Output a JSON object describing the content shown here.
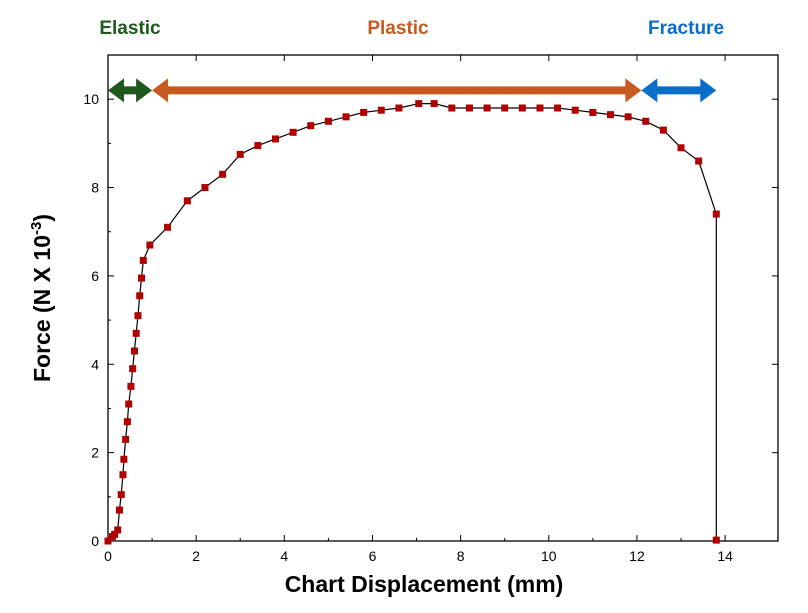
{
  "chart_data": {
    "type": "scatter",
    "xlabel": "Chart Displacement (mm)",
    "ylabel": {
      "main": "Force (N X 10",
      "sup": "-3",
      "close": ")"
    },
    "xlim": [
      0,
      15.2
    ],
    "ylim": [
      0,
      11
    ],
    "xticks": [
      0,
      2,
      4,
      6,
      8,
      10,
      12,
      14
    ],
    "yticks": [
      0,
      2,
      4,
      6,
      8,
      10
    ],
    "grid": false,
    "series": [
      {
        "color": "#b00000",
        "line_color": "#000000",
        "marker": "square",
        "points": [
          [
            0.0,
            0.0
          ],
          [
            0.1,
            0.1
          ],
          [
            0.15,
            0.15
          ],
          [
            0.22,
            0.25
          ],
          [
            0.26,
            0.7
          ],
          [
            0.3,
            1.05
          ],
          [
            0.34,
            1.5
          ],
          [
            0.36,
            1.85
          ],
          [
            0.4,
            2.3
          ],
          [
            0.44,
            2.7
          ],
          [
            0.47,
            3.1
          ],
          [
            0.52,
            3.5
          ],
          [
            0.56,
            3.9
          ],
          [
            0.6,
            4.3
          ],
          [
            0.64,
            4.7
          ],
          [
            0.68,
            5.1
          ],
          [
            0.72,
            5.55
          ],
          [
            0.76,
            5.95
          ],
          [
            0.8,
            6.35
          ],
          [
            0.95,
            6.7
          ],
          [
            1.35,
            7.1
          ],
          [
            1.8,
            7.7
          ],
          [
            2.2,
            8.0
          ],
          [
            2.6,
            8.3
          ],
          [
            3.0,
            8.75
          ],
          [
            3.4,
            8.95
          ],
          [
            3.8,
            9.1
          ],
          [
            4.2,
            9.25
          ],
          [
            4.6,
            9.4
          ],
          [
            5.0,
            9.5
          ],
          [
            5.4,
            9.6
          ],
          [
            5.8,
            9.7
          ],
          [
            6.2,
            9.75
          ],
          [
            6.6,
            9.8
          ],
          [
            7.05,
            9.9
          ],
          [
            7.4,
            9.9
          ],
          [
            7.8,
            9.8
          ],
          [
            8.2,
            9.8
          ],
          [
            8.6,
            9.8
          ],
          [
            9.0,
            9.8
          ],
          [
            9.4,
            9.8
          ],
          [
            9.8,
            9.8
          ],
          [
            10.2,
            9.8
          ],
          [
            10.6,
            9.75
          ],
          [
            11.0,
            9.7
          ],
          [
            11.4,
            9.65
          ],
          [
            11.8,
            9.6
          ],
          [
            12.2,
            9.5
          ],
          [
            12.6,
            9.3
          ],
          [
            13.0,
            8.9
          ],
          [
            13.4,
            8.6
          ],
          [
            13.8,
            7.4
          ],
          [
            13.8,
            0.02
          ]
        ]
      }
    ],
    "regions": [
      {
        "label": "Elastic",
        "color": "#1e5a1e",
        "x_start": 0,
        "x_end": 1.0,
        "y": 10.2
      },
      {
        "label": "Plastic",
        "color": "#c65a20",
        "x_start": 1.0,
        "x_end": 12.1,
        "y": 10.2
      },
      {
        "label": "Fracture",
        "color": "#0a6ec8",
        "x_start": 12.1,
        "x_end": 13.8,
        "y": 10.2
      }
    ]
  }
}
